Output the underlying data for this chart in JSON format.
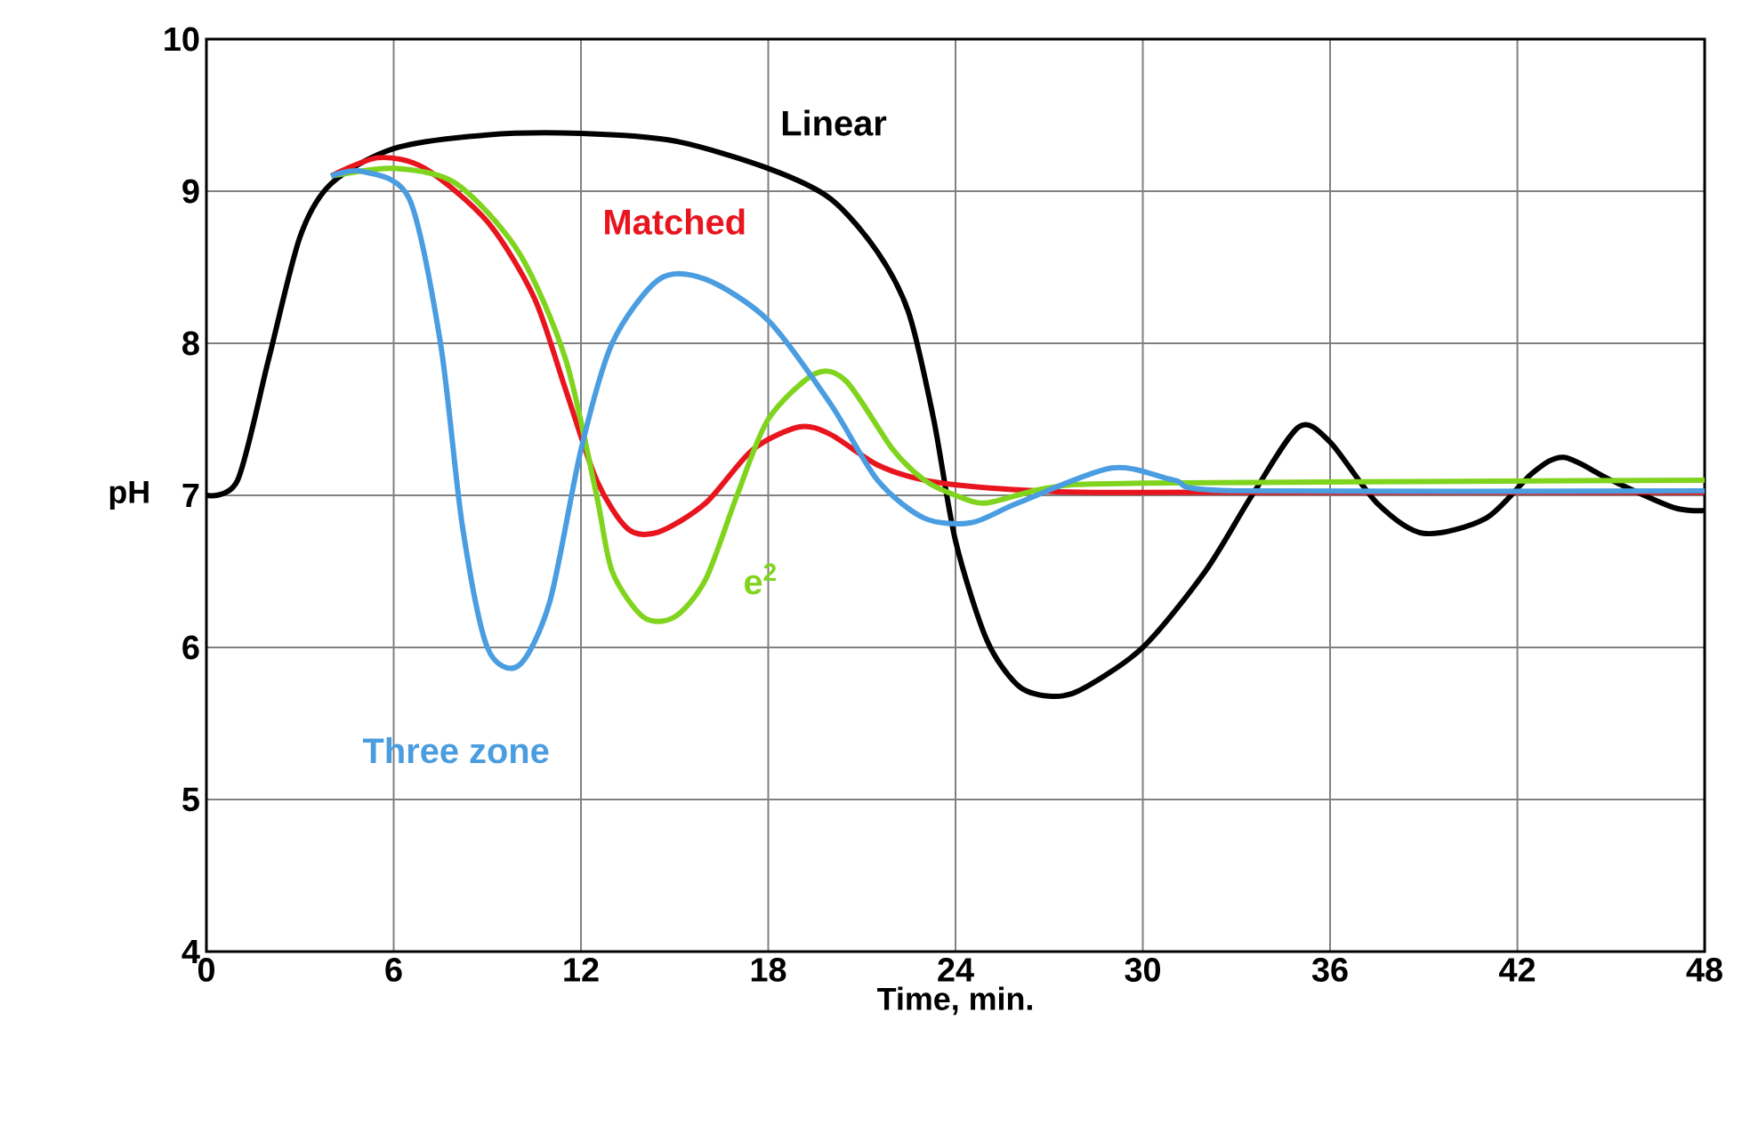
{
  "chart_data": {
    "type": "line",
    "xlabel": "Time, min.",
    "ylabel": "pH",
    "xlim": [
      0,
      48
    ],
    "ylim": [
      4,
      10
    ],
    "xticks": [
      0,
      6,
      12,
      18,
      24,
      30,
      36,
      42,
      48
    ],
    "yticks": [
      4,
      5,
      6,
      7,
      8,
      9,
      10
    ],
    "grid": true,
    "legend": false,
    "marker": "none",
    "line_style": "solid",
    "series": [
      {
        "name": "Linear",
        "color": "#000000",
        "x": [
          0,
          1,
          2,
          3,
          4,
          6,
          9,
          12,
          15,
          18,
          20,
          21.5,
          22.5,
          23.3,
          24,
          25,
          26,
          27,
          28,
          30,
          32,
          33.5,
          35,
          36,
          37.5,
          39,
          41,
          42.5,
          43.5,
          45,
          47,
          48
        ],
        "values": [
          7.0,
          7.1,
          7.9,
          8.7,
          9.05,
          9.28,
          9.37,
          9.38,
          9.33,
          9.15,
          8.95,
          8.6,
          8.2,
          7.5,
          6.7,
          6.05,
          5.75,
          5.68,
          5.72,
          6.0,
          6.5,
          7.0,
          7.45,
          7.35,
          6.95,
          6.75,
          6.85,
          7.15,
          7.25,
          7.1,
          6.92,
          6.9
        ]
      },
      {
        "name": "Matched",
        "color": "#e8141e",
        "x": [
          4,
          5.5,
          7,
          9,
          10.5,
          11.5,
          12.5,
          13.5,
          14.5,
          16,
          17.5,
          19,
          20,
          21.5,
          23,
          25,
          28,
          32,
          48
        ],
        "values": [
          9.1,
          9.22,
          9.15,
          8.8,
          8.3,
          7.7,
          7.1,
          6.78,
          6.76,
          6.95,
          7.3,
          7.45,
          7.4,
          7.2,
          7.1,
          7.05,
          7.02,
          7.02,
          7.02
        ]
      },
      {
        "name": "e$^{2}$",
        "color": "#80d41e",
        "x": [
          4,
          6,
          8,
          10,
          11.5,
          12.5,
          13,
          14,
          15,
          16,
          17,
          18,
          19.5,
          20.5,
          22,
          23,
          24,
          25,
          27,
          30,
          48
        ],
        "values": [
          9.1,
          9.15,
          9.05,
          8.6,
          7.9,
          7.0,
          6.5,
          6.2,
          6.2,
          6.45,
          7.0,
          7.5,
          7.8,
          7.75,
          7.3,
          7.1,
          7.0,
          6.95,
          7.05,
          7.08,
          7.1
        ]
      },
      {
        "name": "Three zone",
        "color": "#4a9de0",
        "x": [
          4,
          5,
          6.5,
          7.5,
          8.2,
          9,
          10,
          11,
          12,
          13,
          14.5,
          16,
          18,
          20,
          21.5,
          23,
          24.5,
          26,
          29,
          31,
          33,
          48
        ],
        "values": [
          9.1,
          9.13,
          8.95,
          8.0,
          6.8,
          6.0,
          5.88,
          6.3,
          7.3,
          8.0,
          8.42,
          8.42,
          8.15,
          7.6,
          7.1,
          6.85,
          6.82,
          6.95,
          7.18,
          7.1,
          7.03,
          7.03
        ]
      }
    ]
  }
}
